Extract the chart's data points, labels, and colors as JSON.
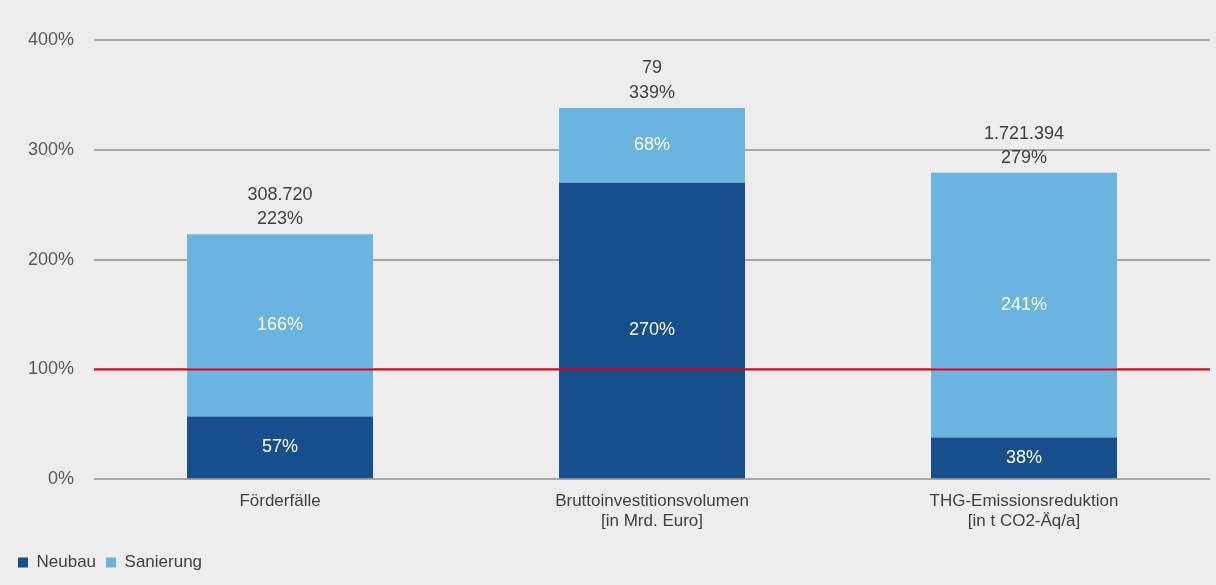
{
  "chart_data": {
    "type": "bar",
    "stacked": true,
    "categories": [
      "Förderfälle",
      "Bruttoinvestitionsvolumen\n[in Mrd. Euro]",
      "THG-Emissionsreduktion\n[in t CO2-Äq/a]"
    ],
    "series": [
      {
        "name": "Neubau",
        "color": "#174f8c",
        "values": [
          57,
          270,
          38
        ],
        "value_labels": [
          "57%",
          "270%",
          "38%"
        ]
      },
      {
        "name": "Sanierung",
        "color": "#6cb4e0",
        "values": [
          166,
          68,
          241
        ],
        "value_labels": [
          "166%",
          "68%",
          "241%"
        ]
      }
    ],
    "totals": [
      "223%",
      "339%",
      "279%"
    ],
    "annotations": [
      {
        "text": "308.720",
        "x": "Förderfälle",
        "y": 223
      },
      {
        "text": "79",
        "x": "Bruttoinvestitionsvolumen\n[in Mrd. Euro]",
        "y": 339
      },
      {
        "text": "1.721.394",
        "x": "THG-Emissionsreduktion\n[in t CO2-Äq/a]",
        "y": 279
      }
    ],
    "ylim": [
      0,
      400
    ],
    "yticks": [
      {
        "value": 0,
        "label": "0%"
      },
      {
        "value": 100,
        "label": "100%"
      },
      {
        "value": 200,
        "label": "200%"
      },
      {
        "value": 300,
        "label": "300%"
      },
      {
        "value": 400,
        "label": "400%"
      }
    ],
    "grid": "y",
    "legend": "bottom left",
    "ref_lines": [
      {
        "axis": "y",
        "value": 100,
        "color": "#d9001b"
      }
    ]
  }
}
